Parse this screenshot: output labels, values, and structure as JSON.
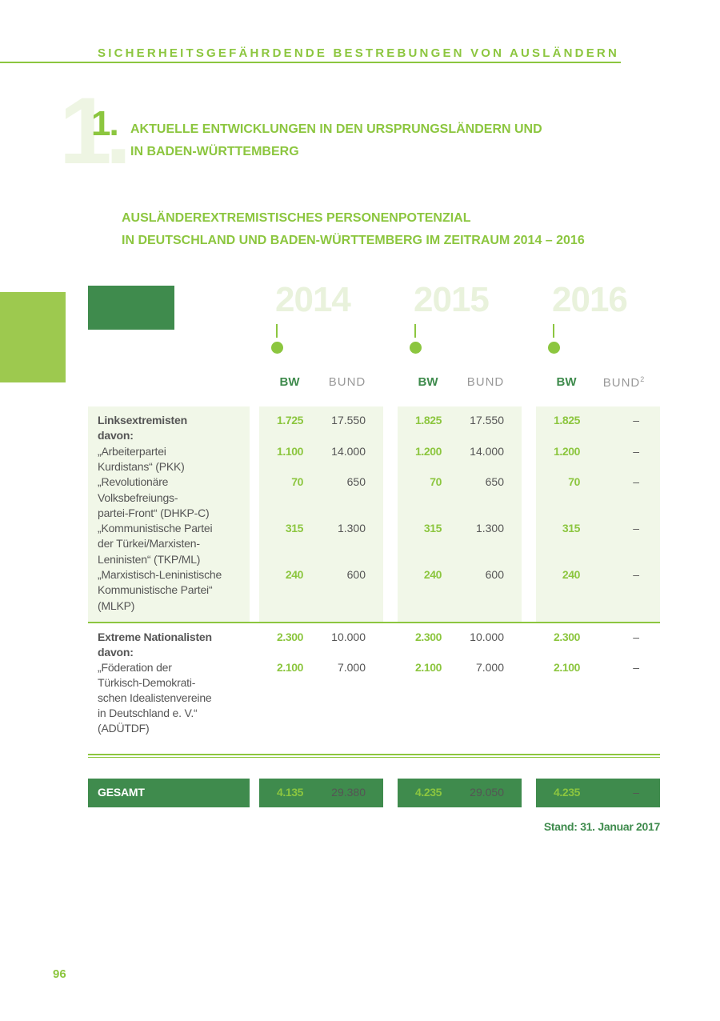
{
  "header": "SICHERHEITSGEFÄHRDENDE BESTREBUNGEN VON AUSLÄNDERN",
  "chapter": {
    "number": "1.",
    "title_lines": [
      "AKTUELLE ENTWICKLUNGEN IN DEN URSPRUNGSLÄNDERN UND",
      "IN BADEN-WÜRTTEMBERG"
    ]
  },
  "table_title_lines": [
    "AUSLÄNDEREXTREMISTISCHES PERSONENPOTENZIAL",
    "IN DEUTSCHLAND UND BADEN-WÜRTTEMBERG IM ZEITRAUM 2014 – 2016"
  ],
  "years": [
    "2014",
    "2015",
    "2016"
  ],
  "column_labels": [
    {
      "bw": "BW",
      "bund": "BUND"
    },
    {
      "bw": "BW",
      "bund": "BUND"
    },
    {
      "bw": "BW",
      "bund": "BUND",
      "note": "2"
    }
  ],
  "groups": [
    {
      "title": "Linksextremisten",
      "intro": "davon:",
      "values": [
        "1.725",
        "17.550",
        "1.825",
        "17.550",
        "1.825",
        "–"
      ],
      "items": [
        {
          "lines": [
            "„Arbeiterpartei",
            "Kurdistans“ (PKK)"
          ],
          "values": [
            "1.100",
            "14.000",
            "1.200",
            "14.000",
            "1.200",
            "–"
          ]
        },
        {
          "lines": [
            "„Revolutionäre",
            "Volksbefreiungs-",
            "partei-Front“ (DHKP-C)"
          ],
          "values": [
            "70",
            "650",
            "70",
            "650",
            "70",
            "–"
          ]
        },
        {
          "lines": [
            "„Kommunistische Partei",
            "der Türkei/Marxisten-",
            "Leninisten“ (TKP/ML)"
          ],
          "values": [
            "315",
            "1.300",
            "315",
            "1.300",
            "315",
            "–"
          ]
        },
        {
          "lines": [
            "„Marxistisch-Leninistische",
            "Kommunistische Partei“",
            "(MLKP)"
          ],
          "values": [
            "240",
            "600",
            "240",
            "600",
            "240",
            "–"
          ]
        }
      ]
    },
    {
      "title": "Extreme Nationalisten",
      "intro": "davon:",
      "values": [
        "2.300",
        "10.000",
        "2.300",
        "10.000",
        "2.300",
        "–"
      ],
      "items": [
        {
          "lines": [
            "„Föderation der",
            "Türkisch-Demokrati-",
            "schen Idealistenvereine",
            "in Deutschland e. V.“",
            "(ADÜTDF)"
          ],
          "values": [
            "2.100",
            "7.000",
            "2.100",
            "7.000",
            "2.100",
            "–"
          ]
        }
      ]
    }
  ],
  "total": {
    "label": "GESAMT",
    "values": [
      "4.135",
      "29.380",
      "4.235",
      "29.050",
      "4.235",
      "–"
    ]
  },
  "status": "Stand: 31. Januar 2017",
  "page_number": "96"
}
